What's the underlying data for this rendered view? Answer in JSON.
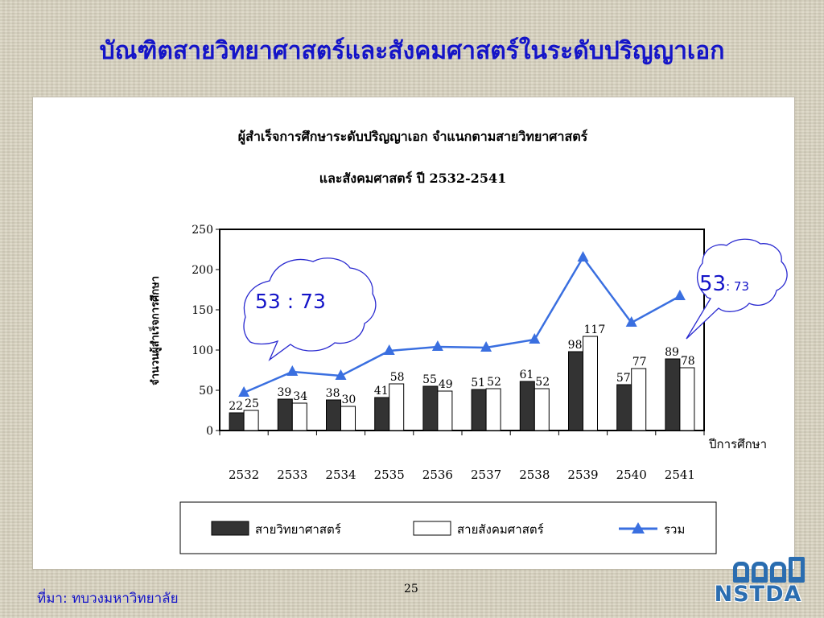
{
  "slide": {
    "title": "บัณฑิตสายวิทยาศาสตร์และสังคมศาสตร์ในระดับปริญญาเอก",
    "source": "ที่มา: ทบวงมหาวิทยาลัย",
    "page_number": "25",
    "logo_text": "NSTDA",
    "colors": {
      "title": "#1414c8",
      "callout_text": "#1414c8",
      "line": "#3a6fe0",
      "bar_science": "#333333",
      "bar_social": "#ffffff"
    }
  },
  "callouts": {
    "left": {
      "text": "53 : 73"
    },
    "right": {
      "main": "53",
      "rest": ": 73"
    }
  },
  "chart_data": {
    "type": "bar",
    "title_line1": "ผู้สำเร็จการศึกษาระดับปริญญาเอก จำแนกตามสายวิทยาศาสตร์",
    "title_line2": "และสังคมศาสตร์ ปี 2532-2541",
    "xlabel": "ปีการศึกษา",
    "ylabel": "จำนวนผู้สำเร็จการศึกษา",
    "ylim": [
      0,
      250
    ],
    "yticks": [
      0,
      50,
      100,
      150,
      200,
      250
    ],
    "categories": [
      "2532",
      "2533",
      "2534",
      "2535",
      "2536",
      "2537",
      "2538",
      "2539",
      "2540",
      "2541"
    ],
    "series": [
      {
        "name": "สายวิทยาศาสตร์",
        "kind": "bar",
        "color": "#333333",
        "values": [
          22,
          39,
          38,
          41,
          55,
          51,
          61,
          98,
          57,
          89
        ]
      },
      {
        "name": "สายสังคมศาสตร์",
        "kind": "bar",
        "color": "#ffffff",
        "values": [
          25,
          34,
          30,
          58,
          49,
          52,
          52,
          117,
          77,
          78
        ]
      },
      {
        "name": "รวม",
        "kind": "line",
        "marker": "triangle",
        "color": "#3a6fe0",
        "values": [
          47,
          73,
          68,
          99,
          104,
          103,
          113,
          215,
          134,
          167
        ]
      }
    ],
    "legend_position": "bottom",
    "grid": false
  }
}
